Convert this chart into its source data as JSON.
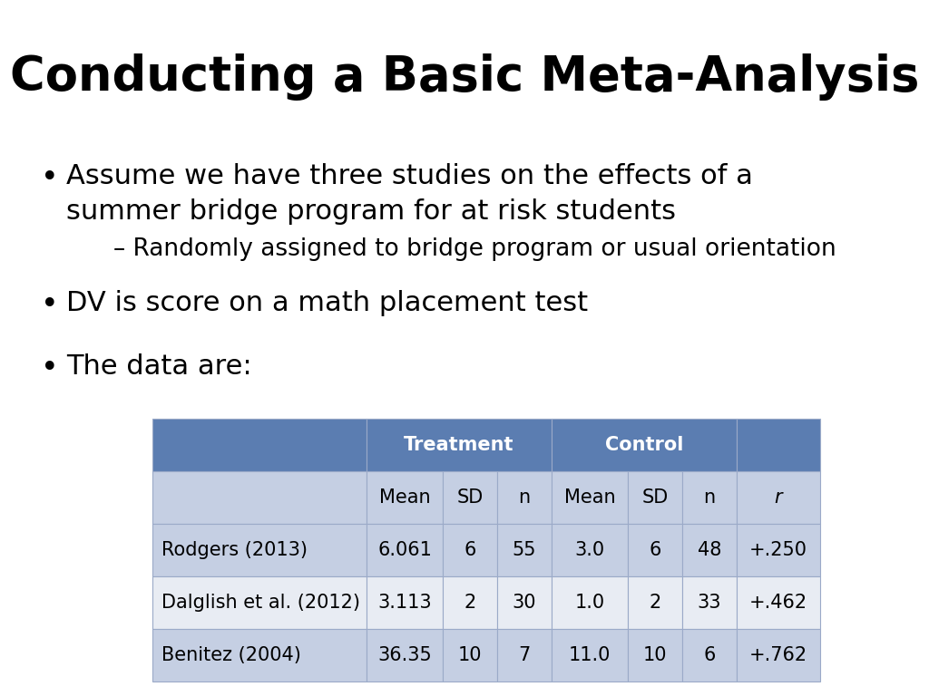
{
  "title": "Conducting a Basic Meta-Analysis",
  "bullets": [
    "Assume we have three studies on the effects of a\nsummer bridge program for at risk students",
    "DV is score on a math placement test",
    "The data are:"
  ],
  "sub_bullet": "Randomly assigned to bridge program or usual orientation",
  "table": {
    "header_bg": "#5B7DB1",
    "header_text": "#FFFFFF",
    "subheader_bg": "#C5CFE3",
    "row_bg_light": "#E8ECF3",
    "cell_border": "#9BAAC8",
    "rows": [
      [
        "Rodgers (2013)",
        "6.061",
        "6",
        "55",
        "3.0",
        "6",
        "48",
        "+.250"
      ],
      [
        "Dalglish et al. (2012)",
        "3.113",
        "2",
        "30",
        "1.0",
        "2",
        "33",
        "+.462"
      ],
      [
        "Benitez (2004)",
        "36.35",
        "10",
        "7",
        "11.0",
        "10",
        "6",
        "+.762"
      ]
    ]
  },
  "bg_color": "#FFFFFF",
  "text_color": "#000000",
  "title_fontsize": 38,
  "bullet_fontsize": 22,
  "sub_bullet_fontsize": 19,
  "table_fontsize": 15
}
